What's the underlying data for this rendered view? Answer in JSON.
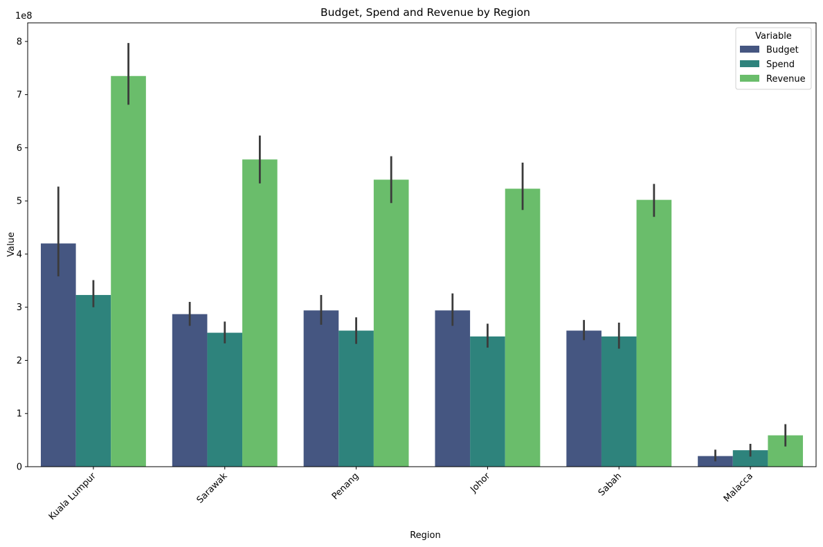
{
  "chart_data": {
    "type": "bar",
    "title": "Budget, Spend and Revenue by Region",
    "xlabel": "Region",
    "ylabel": "Value",
    "y_offset_label": "1e8",
    "ylim": [
      0,
      8.35
    ],
    "y_scale": 100000000,
    "yticks": [
      0,
      1,
      2,
      3,
      4,
      5,
      6,
      7,
      8
    ],
    "categories": [
      "Kuala Lumpur",
      "Sarawak",
      "Penang",
      "Johor",
      "Sabah",
      "Malacca"
    ],
    "legend": {
      "title": "Variable",
      "position": "top-right"
    },
    "series": [
      {
        "name": "Budget",
        "color": "#455681",
        "values": [
          4.2,
          2.87,
          2.94,
          2.94,
          2.56,
          0.2
        ],
        "err_low": [
          3.58,
          2.65,
          2.67,
          2.65,
          2.38,
          0.1
        ],
        "err_high": [
          5.27,
          3.1,
          3.23,
          3.26,
          2.76,
          0.32
        ]
      },
      {
        "name": "Spend",
        "color": "#2e837c",
        "values": [
          3.23,
          2.52,
          2.56,
          2.45,
          2.45,
          0.31
        ],
        "err_low": [
          3.0,
          2.32,
          2.31,
          2.24,
          2.22,
          0.19
        ],
        "err_high": [
          3.51,
          2.73,
          2.81,
          2.69,
          2.71,
          0.43
        ]
      },
      {
        "name": "Revenue",
        "color": "#6abd6b",
        "values": [
          7.35,
          5.78,
          5.4,
          5.23,
          5.02,
          0.59
        ],
        "err_low": [
          6.81,
          5.33,
          4.96,
          4.83,
          4.7,
          0.38
        ],
        "err_high": [
          7.97,
          6.23,
          5.84,
          5.72,
          5.32,
          0.8
        ]
      }
    ],
    "error_bar_color": "#3b3b3b",
    "grid": false
  }
}
